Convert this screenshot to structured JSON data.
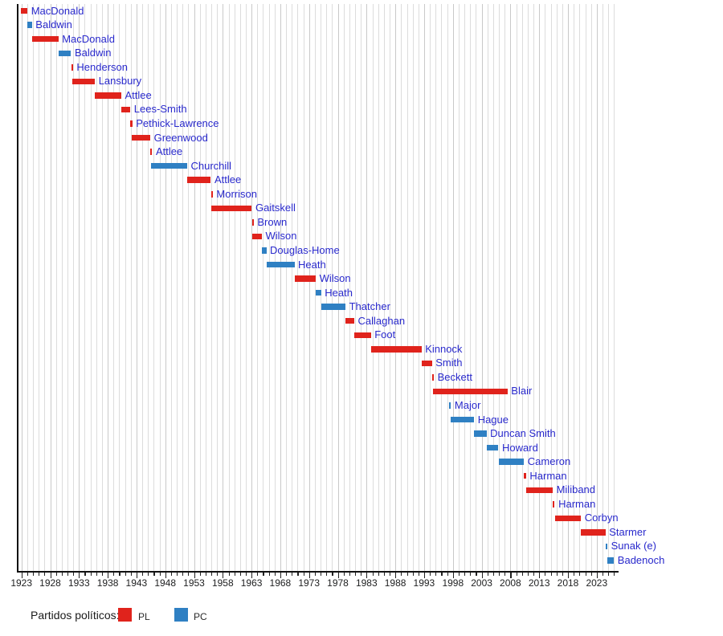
{
  "chart_data": {
    "type": "timeline",
    "title": "",
    "description": "Tenure timeline of UK Leaders of the Opposition coloured by party",
    "x_axis": {
      "xlim": [
        1922.35,
        2026.8
      ],
      "minor_tick_step": 1,
      "first_grid_year": 1923,
      "last_grid_year": 2026,
      "year_labels": [
        1923,
        1928,
        1933,
        1938,
        1943,
        1948,
        1953,
        1958,
        1963,
        1968,
        1973,
        1978,
        1983,
        1988,
        1993,
        1998,
        2003,
        2008,
        2013,
        2018,
        2023
      ]
    },
    "parties": {
      "PL": "#e0231c",
      "PC": "#2f80c3"
    },
    "label_color": "#2929cc",
    "rows": [
      {
        "name": "MacDonald",
        "party": "PL",
        "start": 1922.85,
        "end": 1924.06
      },
      {
        "name": "Baldwin",
        "party": "PC",
        "start": 1924.06,
        "end": 1924.84
      },
      {
        "name": "MacDonald",
        "party": "PL",
        "start": 1924.84,
        "end": 1929.43
      },
      {
        "name": "Baldwin",
        "party": "PC",
        "start": 1929.43,
        "end": 1931.64
      },
      {
        "name": "Henderson",
        "party": "PL",
        "start": 1931.64,
        "end": 1931.82
      },
      {
        "name": "Lansbury",
        "party": "PL",
        "start": 1931.82,
        "end": 1935.79
      },
      {
        "name": "Attlee",
        "party": "PL",
        "start": 1935.79,
        "end": 1940.37
      },
      {
        "name": "Lees-Smith",
        "party": "PL",
        "start": 1940.37,
        "end": 1941.94
      },
      {
        "name": "Pethick-Lawrence",
        "party": "PL",
        "start": 1941.94,
        "end": 1942.12
      },
      {
        "name": "Greenwood",
        "party": "PL",
        "start": 1942.12,
        "end": 1945.4
      },
      {
        "name": "Attlee",
        "party": "PL",
        "start": 1945.4,
        "end": 1945.56
      },
      {
        "name": "Churchill",
        "party": "PC",
        "start": 1945.56,
        "end": 1951.82
      },
      {
        "name": "Attlee",
        "party": "PL",
        "start": 1951.82,
        "end": 1955.93
      },
      {
        "name": "Morrison",
        "party": "PL",
        "start": 1955.93,
        "end": 1955.98
      },
      {
        "name": "Gaitskell",
        "party": "PL",
        "start": 1955.98,
        "end": 1963.05
      },
      {
        "name": "Brown",
        "party": "PL",
        "start": 1963.05,
        "end": 1963.12
      },
      {
        "name": "Wilson",
        "party": "PL",
        "start": 1963.12,
        "end": 1964.8
      },
      {
        "name": "Douglas-Home",
        "party": "PC",
        "start": 1964.8,
        "end": 1965.57
      },
      {
        "name": "Heath",
        "party": "PC",
        "start": 1965.57,
        "end": 1970.46
      },
      {
        "name": "Wilson",
        "party": "PL",
        "start": 1970.46,
        "end": 1974.17
      },
      {
        "name": "Heath",
        "party": "PC",
        "start": 1974.17,
        "end": 1975.11
      },
      {
        "name": "Thatcher",
        "party": "PC",
        "start": 1975.11,
        "end": 1979.34
      },
      {
        "name": "Callaghan",
        "party": "PL",
        "start": 1979.34,
        "end": 1980.86
      },
      {
        "name": "Foot",
        "party": "PL",
        "start": 1980.86,
        "end": 1983.75
      },
      {
        "name": "Kinnock",
        "party": "PL",
        "start": 1983.75,
        "end": 1992.54
      },
      {
        "name": "Smith",
        "party": "PL",
        "start": 1992.54,
        "end": 1994.36
      },
      {
        "name": "Beckett",
        "party": "PL",
        "start": 1994.36,
        "end": 1994.55
      },
      {
        "name": "Blair",
        "party": "PL",
        "start": 1994.55,
        "end": 2007.5
      },
      {
        "name": "Major",
        "party": "PC",
        "start": 1997.33,
        "end": 1997.6
      },
      {
        "name": "Hague",
        "party": "PC",
        "start": 1997.6,
        "end": 2001.69
      },
      {
        "name": "Duncan Smith",
        "party": "PC",
        "start": 2001.69,
        "end": 2003.84
      },
      {
        "name": "Howard",
        "party": "PC",
        "start": 2003.84,
        "end": 2005.92
      },
      {
        "name": "Cameron",
        "party": "PC",
        "start": 2005.92,
        "end": 2010.37
      },
      {
        "name": "Harman",
        "party": "PL",
        "start": 2010.37,
        "end": 2010.73
      },
      {
        "name": "Miliband",
        "party": "PL",
        "start": 2010.73,
        "end": 2015.37
      },
      {
        "name": "Harman",
        "party": "PL",
        "start": 2015.37,
        "end": 2015.71
      },
      {
        "name": "Corbyn",
        "party": "PL",
        "start": 2015.71,
        "end": 2020.26
      },
      {
        "name": "Starmer",
        "party": "PL",
        "start": 2020.26,
        "end": 2024.52
      },
      {
        "name": "Sunak (e)",
        "party": "PC",
        "start": 2024.52,
        "end": 2024.84
      },
      {
        "name": "Badenoch",
        "party": "PC",
        "start": 2024.84,
        "end": 2026.0
      }
    ],
    "legend": {
      "title": "Partidos políticos:",
      "items": [
        {
          "label": "PL",
          "color": "#e0231c"
        },
        {
          "label": "PC",
          "color": "#2f80c3"
        }
      ]
    }
  }
}
